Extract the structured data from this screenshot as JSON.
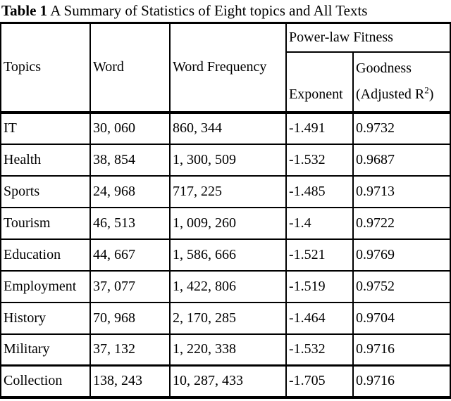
{
  "title": {
    "label": "Table 1",
    "text": "A Summary of Statistics of Eight topics and All Texts"
  },
  "table": {
    "headers": {
      "topics": "Topics",
      "word": "Word",
      "word_frequency": "Word Frequency",
      "power_law": "Power-law Fitness",
      "exponent": "Exponent",
      "goodness_line1": "Goodness",
      "goodness_line2_pre": "(Adjusted R",
      "goodness_sup": "2",
      "goodness_line2_post": ")"
    },
    "rows": [
      {
        "topic": "IT",
        "word": "30, 060",
        "word_frequency": "860, 344",
        "exponent": "-1.491",
        "goodness": "0.9732"
      },
      {
        "topic": "Health",
        "word": "38, 854",
        "word_frequency": "1, 300, 509",
        "exponent": "-1.532",
        "goodness": "0.9687"
      },
      {
        "topic": "Sports",
        "word": "24, 968",
        "word_frequency": "717, 225",
        "exponent": "-1.485",
        "goodness": "0.9713"
      },
      {
        "topic": "Tourism",
        "word": "46, 513",
        "word_frequency": "1, 009, 260",
        "exponent": "-1.4",
        "goodness": "0.9722"
      },
      {
        "topic": "Education",
        "word": "44, 667",
        "word_frequency": "1, 586, 666",
        "exponent": "-1.521",
        "goodness": "0.9769"
      },
      {
        "topic": "Employment",
        "word": "37, 077",
        "word_frequency": "1, 422, 806",
        "exponent": "-1.519",
        "goodness": "0.9752"
      },
      {
        "topic": "History",
        "word": "70, 968",
        "word_frequency": "2, 170, 285",
        "exponent": "-1.464",
        "goodness": "0.9704"
      },
      {
        "topic": "Military",
        "word": "37, 132",
        "word_frequency": "1, 220, 338",
        "exponent": "-1.532",
        "goodness": "0.9716"
      },
      {
        "topic": "Collection",
        "word": "138, 243",
        "word_frequency": "10, 287, 433",
        "exponent": "-1.705",
        "goodness": "0.9716"
      }
    ]
  },
  "colors": {
    "border": "#000000",
    "text": "#000000",
    "background": "#ffffff"
  }
}
